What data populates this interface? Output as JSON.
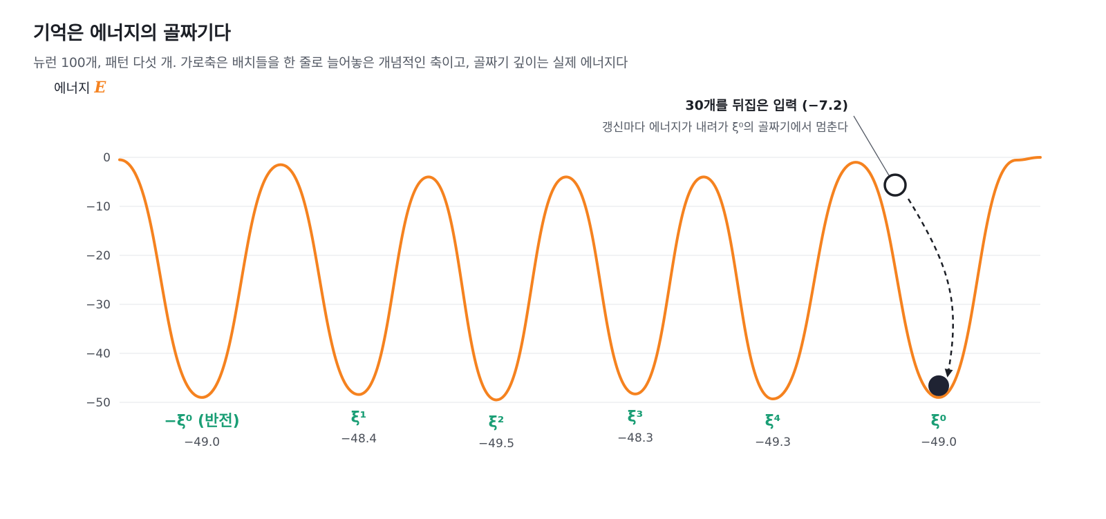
{
  "header": {
    "title": "기억은 에너지의 골짜기다",
    "subtitle": "뉴런 100개, 패턴 다섯 개. 가로축은 배치들을 한 줄로 늘어놓은 개념적인 축이고, 골짜기 깊이는 실제 에너지다"
  },
  "chart_data": {
    "type": "line",
    "ylabel": "에너지",
    "ylabel_symbol": "E",
    "ylim": [
      -52,
      2
    ],
    "yticks": [
      "0",
      "−10",
      "−20",
      "−30",
      "−40",
      "−50"
    ],
    "ytick_values": [
      0,
      -10,
      -20,
      -30,
      -40,
      -50
    ],
    "grid": true,
    "line_color": "#f5821f",
    "label_color": "#1a9e75",
    "wells": [
      {
        "label": "−ξ⁰ (반전)",
        "energy": -49.0,
        "energy_label": "−49.0"
      },
      {
        "label": "ξ¹",
        "energy": -48.4,
        "energy_label": "−48.4"
      },
      {
        "label": "ξ²",
        "energy": -49.5,
        "energy_label": "−49.5"
      },
      {
        "label": "ξ³",
        "energy": -48.3,
        "energy_label": "−48.3"
      },
      {
        "label": "ξ⁴",
        "energy": -49.3,
        "energy_label": "−49.3"
      },
      {
        "label": "ξ⁰",
        "energy": -49.0,
        "energy_label": "−49.0"
      }
    ],
    "peaks": [
      -1.5,
      -4.0,
      -4.0,
      -4.0,
      -1.0
    ],
    "edge_left": -0.5,
    "edge_right": 0,
    "start_state": {
      "energy": -7.2
    },
    "annotation": {
      "title": "30개를 뒤집은 입력 (−7.2)",
      "subtitle": "갱신마다 에너지가 내려가 ξ⁰의 골짜기에서 멈춘다"
    }
  }
}
